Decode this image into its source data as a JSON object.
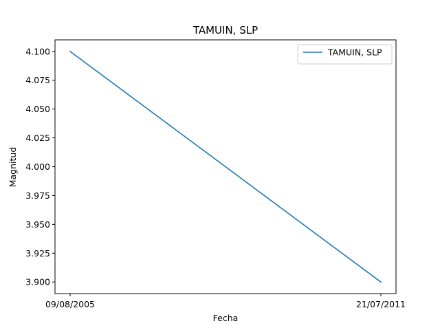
{
  "chart_data": {
    "type": "line",
    "title": "TAMUIN, SLP",
    "xlabel": "Fecha",
    "ylabel": "Magnitud",
    "categories": [
      "09/08/2005",
      "21/07/2011"
    ],
    "series": [
      {
        "name": "TAMUIN, SLP",
        "values": [
          4.1,
          3.9
        ],
        "color": "#1f77b4"
      }
    ],
    "ylim": [
      3.89,
      4.11
    ],
    "yticks": [
      3.9,
      3.925,
      3.95,
      3.975,
      4.0,
      4.025,
      4.05,
      4.075,
      4.1
    ],
    "ytick_labels": [
      "3.900",
      "3.925",
      "3.950",
      "3.975",
      "4.000",
      "4.025",
      "4.050",
      "4.075",
      "4.100"
    ],
    "grid": false,
    "legend": "top-right"
  }
}
